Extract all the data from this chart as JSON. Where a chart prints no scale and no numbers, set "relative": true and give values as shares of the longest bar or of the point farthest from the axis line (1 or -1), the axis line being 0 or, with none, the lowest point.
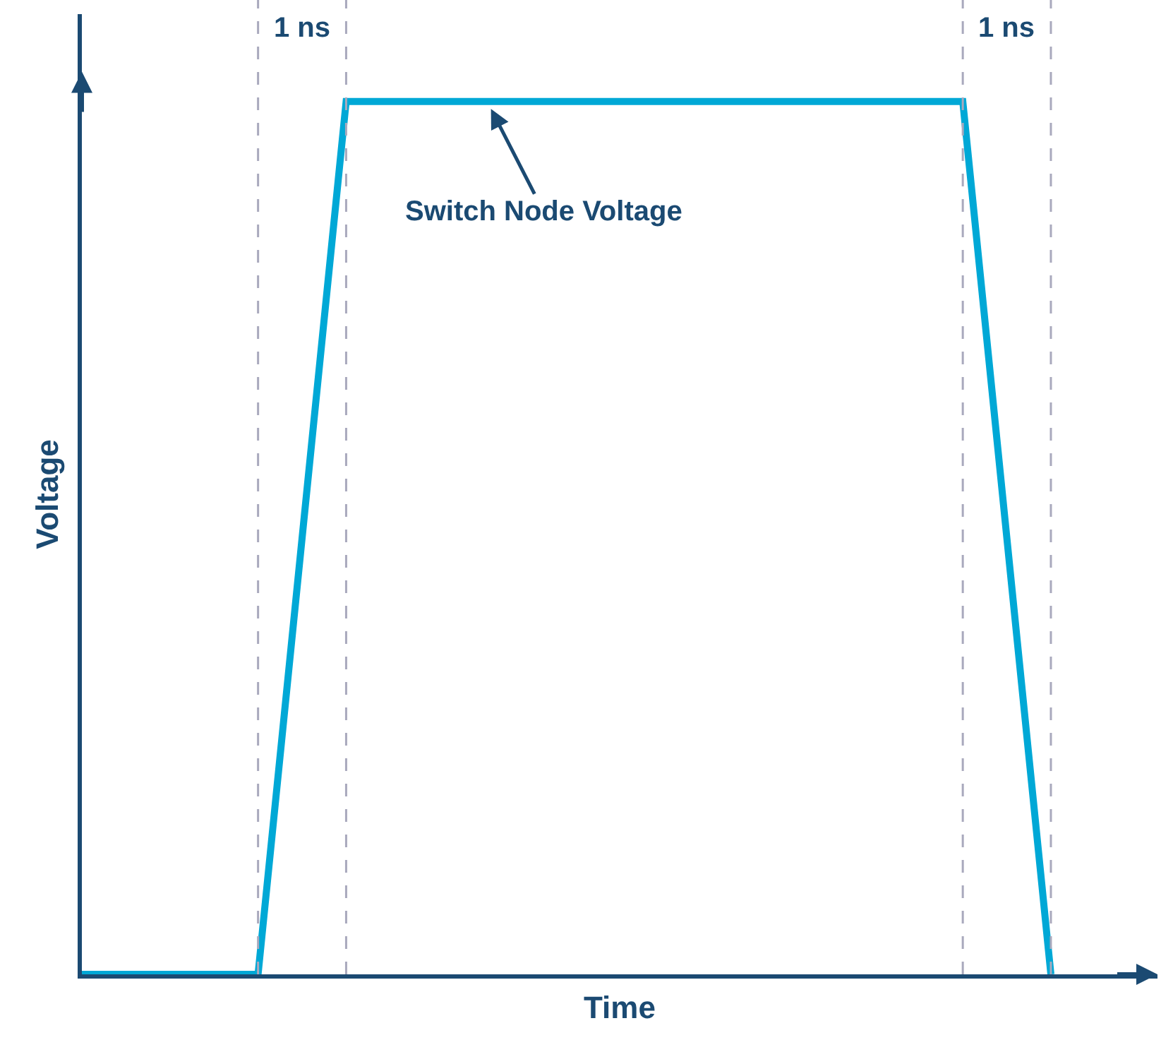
{
  "chart_data": {
    "type": "line",
    "relative": true,
    "xlabel": "Time",
    "ylabel": "Voltage",
    "categories": [
      null,
      null,
      null,
      null,
      null,
      null,
      null,
      null,
      null,
      null,
      null,
      null
    ],
    "series": [
      {
        "color": "#00a8d6",
        "values": [
          0,
          0,
          0,
          1,
          1,
          1,
          1,
          1,
          1,
          1,
          1,
          0
        ]
      }
    ],
    "tick_labels": false,
    "grid": "x",
    "marker": "none",
    "line_style": "solid",
    "annotations": [
      "1 ns",
      "1 ns",
      "Switch Node Voltage"
    ]
  }
}
